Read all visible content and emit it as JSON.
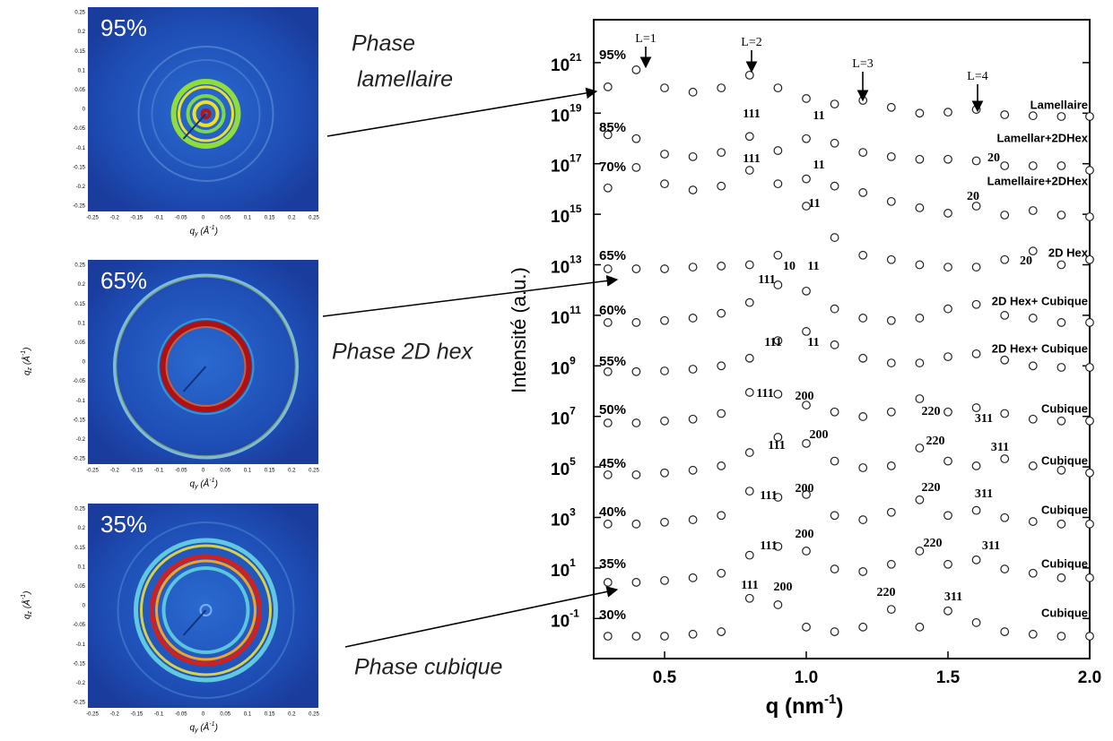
{
  "images": [
    {
      "label": "95%",
      "xlabel": "q",
      "xlabel_sub": "y",
      "xlabel_unit": " (Å",
      "xlabel_sup": "-1",
      "xlabel_end": ")"
    },
    {
      "label": "65%",
      "xlabel": "q",
      "xlabel_sub": "y",
      "xlabel_unit": " (Å",
      "xlabel_sup": "-1",
      "xlabel_end": ")",
      "ylabel": "q",
      "ylabel_sub": "z",
      "ylabel_unit": " (Å",
      "ylabel_sup": "-1",
      "ylabel_end": ")"
    },
    {
      "label": "35%",
      "xlabel": "q",
      "xlabel_sub": "y",
      "xlabel_unit": " (Å",
      "xlabel_sup": "-1",
      "xlabel_end": ")",
      "ylabel": "q",
      "ylabel_sub": "z",
      "ylabel_unit": " (Å",
      "ylabel_sup": "-1",
      "ylabel_end": ")"
    }
  ],
  "image_xticks": [
    "-0.25",
    "-0.2",
    "-0.15",
    "-0.1",
    "-0.05",
    "0",
    "0.05",
    "0.1",
    "0.15",
    "0.2",
    "0.25"
  ],
  "image_yticks": [
    "0.25",
    "0.2",
    "0.15",
    "0.1",
    "0.05",
    "0",
    "-0.05",
    "-0.1",
    "-0.15",
    "-0.2",
    "-0.25"
  ],
  "phases": [
    [
      "Phase",
      "lamellaire"
    ],
    [
      "Phase 2D hex"
    ],
    [
      "Phase cubique"
    ]
  ],
  "chart_data": {
    "type": "scatter",
    "ylabel": "Intensité (a.u.)",
    "xlabel": "q (nm",
    "xlabel_sup": "-1",
    "xlabel_end": ")",
    "log_y": true,
    "marker_color": "#222222",
    "xlim": [
      0.25,
      2.0
    ],
    "xticks": [
      0.5,
      {
        "value": 1.0,
        "label": "1.0"
      },
      1.5,
      {
        "value": 2.0,
        "label": "2.0"
      }
    ],
    "ylim": [
      0.0026,
      5e+22
    ],
    "yticks": [
      {
        "value": 0.1,
        "label": "10",
        "exponent": "-1"
      },
      {
        "value": 10,
        "label": "10",
        "exponent": "1"
      },
      {
        "value": 1000,
        "label": "10",
        "exponent": "3"
      },
      {
        "value": 100000.0,
        "label": "10",
        "exponent": "5"
      },
      {
        "value": 10000000.0,
        "label": "10",
        "exponent": "7"
      },
      {
        "value": 1000000000.0,
        "label": "10",
        "exponent": "9"
      },
      {
        "value": 100000000000.0,
        "label": "10",
        "exponent": "11"
      },
      {
        "value": 10000000000000.0,
        "label": "10",
        "exponent": "13"
      },
      {
        "value": 1000000000000000.0,
        "label": "10",
        "exponent": "15"
      },
      {
        "value": 1e+17,
        "label": "10",
        "exponent": "17"
      },
      {
        "value": 1e+19,
        "label": "10",
        "exponent": "19"
      },
      {
        "value": 1e+21,
        "label": "10",
        "exponent": "21"
      }
    ],
    "x": [
      0.3,
      0.4,
      0.5,
      0.6,
      0.7,
      0.8,
      0.9,
      1.0,
      1.1,
      1.2,
      1.3,
      1.4,
      1.5,
      1.6,
      1.7,
      1.8,
      1.9,
      2.0
    ],
    "series": [
      {
        "name": "95%",
        "phase": "Lamellaire",
        "peaks": [
          "L=1",
          "L=2",
          "L=3",
          "L=4"
        ],
        "values": [
          1.1e+20,
          5.2e+20,
          1e+20,
          6.8e+19,
          1e+20,
          3.2e+20,
          1e+20,
          3.8e+19,
          2.3e+19,
          3.2e+19,
          1.7e+19,
          1e+19,
          1.1e+19,
          1.4e+19,
          8.7e+18,
          7.9e+18,
          7.4e+18,
          7.4e+18
        ]
      },
      {
        "name": "85%",
        "phase": "Lamellar+2DHex",
        "peaks": [
          "111",
          "11",
          "20"
        ],
        "values": [
          1.4e+18,
          9.8e+17,
          2.4e+17,
          1.9e+17,
          2.8e+17,
          1.2e+18,
          3.3e+17,
          9.8e+17,
          6.5e+17,
          2.8e+17,
          1.9e+17,
          1.5e+17,
          1.5e+17,
          1.3e+17,
          8.3e+16,
          8.3e+16,
          8.3e+16,
          5.5e+16
        ]
      },
      {
        "name": "70%",
        "phase": "Lamellaire+2DHex",
        "peaks": [
          "111",
          "11",
          "20"
        ],
        "values": [
          1.1e+16,
          7.1e+16,
          1.6e+16,
          9100000000000000.0,
          1.3e+16,
          5.5e+16,
          1.6e+16,
          2.5e+16,
          1.3e+16,
          7200000000000000.0,
          3200000000000000.0,
          1800000000000000.0,
          1100000000000000.0,
          2100000000000000.0,
          930000000000000.0,
          1400000000000000.0,
          930000000000000.0,
          790000000000000.0
        ]
      },
      {
        "name": "65%",
        "phase": "2D Hex",
        "peaks": [
          "11",
          "20"
        ],
        "values": [
          6900000000000.0,
          6900000000000.0,
          6900000000000.0,
          8100000000000.0,
          8900000000000.0,
          10000000000000.0,
          24000000000000.0,
          2100000000000000.0,
          120000000000000.0,
          24000000000000.0,
          16000000000000.0,
          10000000000000.0,
          8100000000000.0,
          8100000000000.0,
          16000000000000.0,
          35000000000000.0,
          10000000000000.0,
          16000000000000.0
        ]
      },
      {
        "name": "60%",
        "phase": "2D Hex+ Cubique",
        "peaks": [
          "111",
          "10",
          "11"
        ],
        "values": [
          52000000000.0,
          52000000000.0,
          62000000000.0,
          78000000000.0,
          120000000000.0,
          320000000000.0,
          1600000000000.0,
          910000000000.0,
          180000000000.0,
          78000000000.0,
          62000000000.0,
          78000000000.0,
          180000000000.0,
          270000000000.0,
          100000000000.0,
          78000000000.0,
          52000000000.0,
          52000000000.0
        ]
      },
      {
        "name": "55%",
        "phase": "2D Hex+ Cubique",
        "peaks": [
          "111",
          "11"
        ],
        "values": [
          590000000.0,
          590000000.0,
          630000000.0,
          740000000.0,
          1000000000.0,
          2000000000.0,
          10000000000.0,
          23000000000.0,
          6800000000.0,
          2000000000.0,
          1300000000.0,
          1300000000.0,
          2300000000.0,
          3000000000.0,
          1700000000.0,
          1000000000.0,
          870000000.0,
          870000000.0
        ]
      },
      {
        "name": "50%",
        "phase": "Cubique",
        "peaks": [
          "111",
          "200",
          "220",
          "311"
        ],
        "values": [
          5500000.0,
          5500000.0,
          6600000.0,
          7800000.0,
          13000000.0,
          89000000.0,
          76000000.0,
          28000000.0,
          15000000.0,
          9800000.0,
          15000000.0,
          50000000.0,
          15000000.0,
          22000000.0,
          13000000.0,
          7800000.0,
          6600000.0,
          6600000.0
        ]
      },
      {
        "name": "45%",
        "phase": "Cubique",
        "peaks": [
          "111",
          "200",
          "220",
          "311"
        ],
        "values": [
          49000.0,
          49000.0,
          58000.0,
          74000.0,
          110000.0,
          370000.0,
          1500000.0,
          850000.0,
          170000.0,
          93000.0,
          110000.0,
          560000.0,
          170000.0,
          110000.0,
          210000.0,
          110000.0,
          74000.0,
          58000.0
        ]
      },
      {
        "name": "40%",
        "phase": "Cubique",
        "peaks": [
          "111",
          "200",
          "220",
          "311"
        ],
        "values": [
          550,
          550,
          650,
          810,
          1200,
          11000,
          6300,
          8100,
          1200,
          810,
          1600,
          5000,
          1200,
          1900,
          980,
          690,
          550,
          550
        ]
      },
      {
        "name": "35%",
        "phase": "Cubique",
        "peaks": [
          "111",
          "200",
          "220",
          "311"
        ],
        "values": [
          2.7,
          2.7,
          3.2,
          4.1,
          6.2,
          32,
          71,
          47,
          9.1,
          7.2,
          14,
          47,
          14,
          21,
          9.1,
          6.2,
          4.1,
          4.1
        ]
      },
      {
        "name": "30%",
        "phase": "Cubique",
        "peaks": [
          "111",
          "200",
          "220",
          "311"
        ],
        "values": [
          0.02,
          0.02,
          0.02,
          0.024,
          0.03,
          0.63,
          0.35,
          0.046,
          0.03,
          0.046,
          0.23,
          0.046,
          0.2,
          0.069,
          0.03,
          0.024,
          0.02,
          0.02
        ]
      }
    ]
  }
}
